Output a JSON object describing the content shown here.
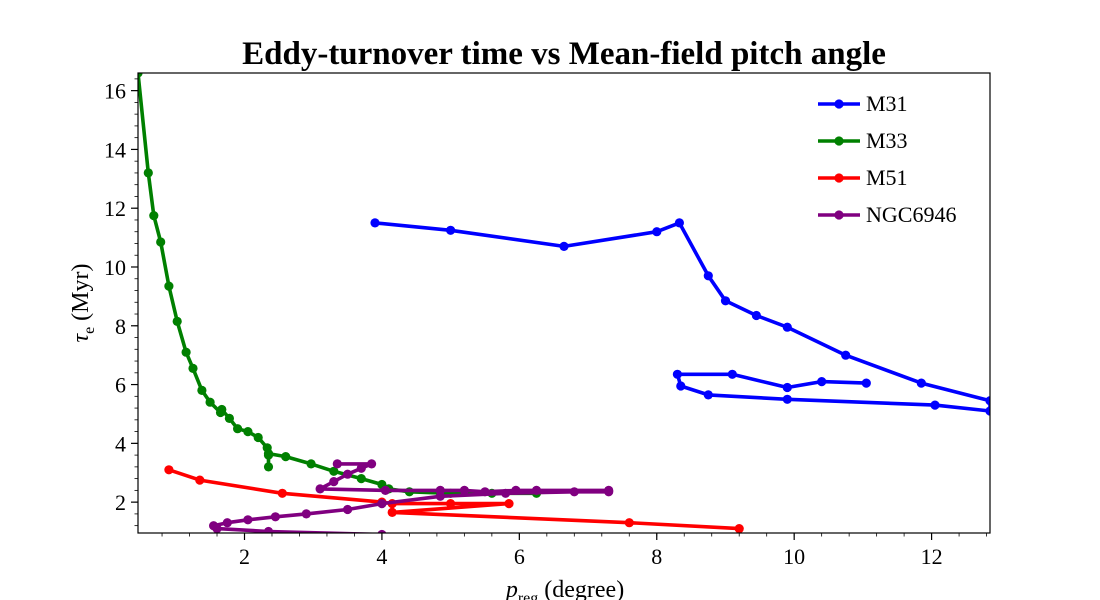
{
  "chart_data": {
    "type": "line",
    "title": "Eddy-turnover time vs Mean-field pitch angle",
    "xlabel": "p",
    "xlabel_sub": "reg",
    "xlabel_unit": "(degree)",
    "ylabel": "τ",
    "ylabel_sub": "e",
    "ylabel_unit": "(Myr)",
    "xlim": [
      0.45,
      12.85
    ],
    "ylim": [
      0.95,
      16.6
    ],
    "xticks": [
      2,
      4,
      6,
      8,
      10,
      12
    ],
    "yticks": [
      2,
      4,
      6,
      8,
      10,
      12,
      14,
      16
    ],
    "grid": false,
    "legend_position": "top-right",
    "series": [
      {
        "name": "M31",
        "color": "#0000ff",
        "points": [
          [
            3.9,
            11.5
          ],
          [
            5.0,
            11.25
          ],
          [
            6.65,
            10.7
          ],
          [
            8.0,
            11.2
          ],
          [
            8.33,
            11.5
          ],
          [
            8.75,
            9.7
          ],
          [
            9.0,
            8.85
          ],
          [
            9.45,
            8.35
          ],
          [
            9.9,
            7.95
          ],
          [
            10.75,
            7.0
          ],
          [
            11.85,
            6.05
          ],
          [
            12.85,
            5.45
          ],
          [
            12.85,
            5.1
          ],
          [
            12.05,
            5.3
          ],
          [
            9.9,
            5.5
          ],
          [
            8.75,
            5.65
          ],
          [
            8.35,
            5.95
          ],
          [
            8.3,
            6.35
          ],
          [
            9.1,
            6.35
          ],
          [
            9.9,
            5.9
          ],
          [
            10.4,
            6.1
          ],
          [
            11.05,
            6.05
          ]
        ]
      },
      {
        "name": "M33",
        "color": "#008000",
        "points": [
          [
            0.45,
            16.6
          ],
          [
            0.6,
            13.2
          ],
          [
            0.68,
            11.75
          ],
          [
            0.78,
            10.85
          ],
          [
            0.9,
            9.35
          ],
          [
            1.02,
            8.15
          ],
          [
            1.15,
            7.1
          ],
          [
            1.25,
            6.55
          ],
          [
            1.38,
            5.8
          ],
          [
            1.5,
            5.4
          ],
          [
            1.65,
            5.05
          ],
          [
            1.67,
            5.15
          ],
          [
            1.78,
            4.85
          ],
          [
            1.9,
            4.5
          ],
          [
            2.05,
            4.4
          ],
          [
            2.2,
            4.2
          ],
          [
            2.33,
            3.85
          ],
          [
            2.35,
            3.6
          ],
          [
            2.35,
            3.2
          ],
          [
            2.35,
            3.65
          ],
          [
            2.6,
            3.55
          ],
          [
            2.97,
            3.3
          ],
          [
            3.3,
            3.05
          ],
          [
            3.7,
            2.8
          ],
          [
            4.0,
            2.6
          ],
          [
            4.1,
            2.45
          ],
          [
            4.4,
            2.35
          ],
          [
            5.0,
            2.3
          ],
          [
            5.6,
            2.3
          ],
          [
            6.25,
            2.3
          ]
        ]
      },
      {
        "name": "M51",
        "color": "#ff0000",
        "points": [
          [
            0.9,
            3.1
          ],
          [
            1.35,
            2.75
          ],
          [
            2.55,
            2.3
          ],
          [
            4.0,
            2.0
          ],
          [
            4.15,
            1.95
          ],
          [
            5.0,
            1.95
          ],
          [
            5.85,
            1.95
          ],
          [
            4.15,
            1.65
          ],
          [
            7.6,
            1.3
          ],
          [
            9.2,
            1.1
          ]
        ]
      },
      {
        "name": "NGC6946",
        "color": "#800080",
        "points": [
          [
            3.35,
            3.3
          ],
          [
            3.85,
            3.3
          ],
          [
            3.7,
            3.15
          ],
          [
            3.5,
            2.95
          ],
          [
            3.3,
            2.7
          ],
          [
            3.1,
            2.45
          ],
          [
            4.05,
            2.4
          ],
          [
            4.85,
            2.4
          ],
          [
            5.2,
            2.4
          ],
          [
            5.5,
            2.35
          ],
          [
            5.95,
            2.4
          ],
          [
            6.25,
            2.4
          ],
          [
            7.3,
            2.4
          ],
          [
            7.3,
            2.35
          ],
          [
            6.8,
            2.35
          ],
          [
            5.8,
            2.3
          ],
          [
            4.85,
            2.2
          ],
          [
            4.0,
            1.95
          ],
          [
            3.5,
            1.75
          ],
          [
            2.9,
            1.6
          ],
          [
            2.45,
            1.5
          ],
          [
            2.05,
            1.4
          ],
          [
            1.75,
            1.3
          ],
          [
            1.55,
            1.2
          ],
          [
            1.6,
            1.1
          ],
          [
            2.35,
            1.0
          ],
          [
            4.0,
            0.9
          ]
        ]
      }
    ]
  }
}
